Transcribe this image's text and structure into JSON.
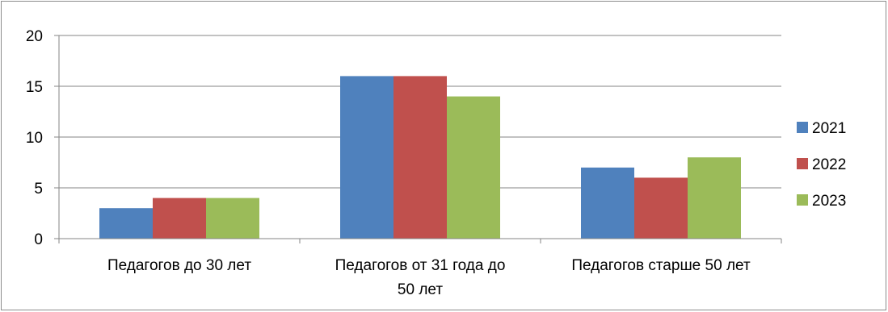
{
  "chart_data": {
    "type": "bar",
    "categories": [
      "Педагогов до 30 лет",
      "Педагогов от 31 года до 50 лет",
      "Педагогов старше 50 лет"
    ],
    "category_lines": [
      [
        "Педагогов до 30 лет"
      ],
      [
        "Педагогов от 31 года до",
        "50 лет"
      ],
      [
        "Педагогов старше 50 лет"
      ]
    ],
    "series": [
      {
        "name": "2021",
        "values": [
          3,
          16,
          7
        ],
        "color": "#4f81bd"
      },
      {
        "name": "2022",
        "values": [
          4,
          16,
          6
        ],
        "color": "#c0504d"
      },
      {
        "name": "2023",
        "values": [
          4,
          14,
          8
        ],
        "color": "#9bbb59"
      }
    ],
    "y_ticks": [
      0,
      5,
      10,
      15,
      20
    ],
    "ylim": [
      0,
      20
    ],
    "grid": true,
    "legend_position": "right",
    "colors": {
      "gridline": "#868686",
      "axis": "#868686"
    }
  }
}
